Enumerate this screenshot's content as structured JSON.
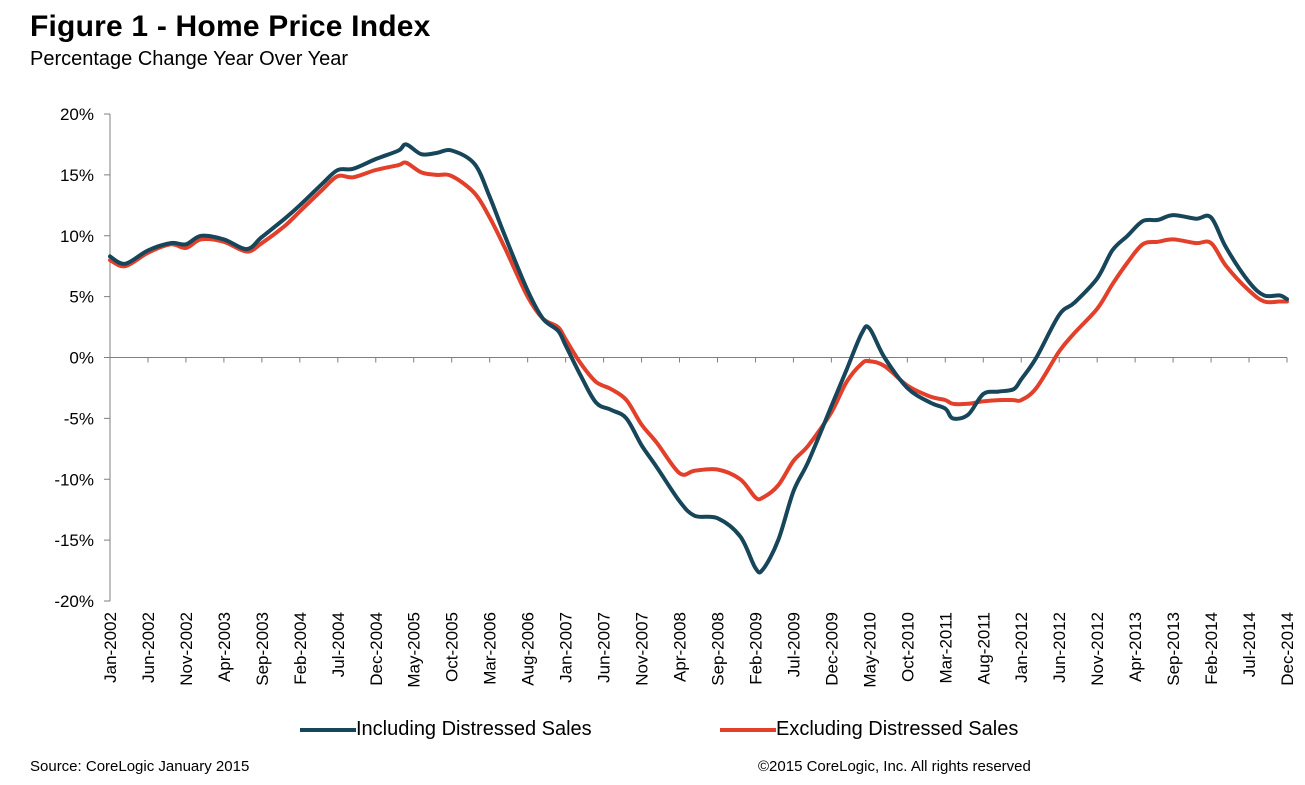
{
  "title": "Figure 1 - Home Price Index",
  "subtitle": "Percentage Change Year Over Year",
  "footer": {
    "source": "Source: CoreLogic  January 2015",
    "copyright": "©2015 CoreLogic, Inc. All rights reserved"
  },
  "chart_data": {
    "type": "line",
    "title": "Figure 1 - Home Price Index",
    "subtitle": "Percentage Change Year Over Year",
    "xlabel": "",
    "ylabel": "",
    "ylim": [
      -20,
      20
    ],
    "yticks": [
      20,
      15,
      10,
      5,
      0,
      -5,
      -10,
      -15,
      -20
    ],
    "ytick_labels": [
      "20%",
      "15%",
      "10%",
      "5%",
      "0%",
      "-5%",
      "-10%",
      "-15%",
      "-20%"
    ],
    "x_start": "Jan-2002",
    "x_end": "Dec-2014",
    "xtick_labels": [
      "Jan-2002",
      "Jun-2002",
      "Nov-2002",
      "Apr-2003",
      "Sep-2003",
      "Feb-2004",
      "Jul-2004",
      "Dec-2004",
      "May-2005",
      "Oct-2005",
      "Mar-2006",
      "Aug-2006",
      "Jan-2007",
      "Jun-2007",
      "Nov-2007",
      "Apr-2008",
      "Sep-2008",
      "Feb-2009",
      "Jul-2009",
      "Dec-2009",
      "May-2010",
      "Oct-2010",
      "Mar-2011",
      "Aug-2011",
      "Jan-2012",
      "Jun-2012",
      "Nov-2012",
      "Apr-2013",
      "Sep-2013",
      "Feb-2014",
      "Jul-2014",
      "Dec-2014"
    ],
    "grid": false,
    "legend_position": "bottom",
    "series": [
      {
        "name": "Including Distressed Sales",
        "color": "#17465a",
        "points": [
          [
            "Jan-2002",
            8.3
          ],
          [
            "Mar-2002",
            7.7
          ],
          [
            "Jun-2002",
            8.8
          ],
          [
            "Sep-2002",
            9.4
          ],
          [
            "Nov-2002",
            9.3
          ],
          [
            "Jan-2003",
            10.0
          ],
          [
            "Apr-2003",
            9.7
          ],
          [
            "Jul-2003",
            8.9
          ],
          [
            "Sep-2003",
            9.9
          ],
          [
            "Dec-2003",
            11.4
          ],
          [
            "Feb-2004",
            12.5
          ],
          [
            "May-2004",
            14.3
          ],
          [
            "Jul-2004",
            15.4
          ],
          [
            "Sep-2004",
            15.5
          ],
          [
            "Dec-2004",
            16.3
          ],
          [
            "Mar-2005",
            17.0
          ],
          [
            "Apr-2005",
            17.5
          ],
          [
            "Jun-2005",
            16.7
          ],
          [
            "Aug-2005",
            16.8
          ],
          [
            "Oct-2005",
            17.0
          ],
          [
            "Jan-2006",
            15.9
          ],
          [
            "Mar-2006",
            13.2
          ],
          [
            "May-2006",
            10.0
          ],
          [
            "Aug-2006",
            5.5
          ],
          [
            "Oct-2006",
            3.2
          ],
          [
            "Dec-2006",
            2.2
          ],
          [
            "Jan-2007",
            1.0
          ],
          [
            "Mar-2007",
            -1.5
          ],
          [
            "May-2007",
            -3.7
          ],
          [
            "Jul-2007",
            -4.3
          ],
          [
            "Sep-2007",
            -5.0
          ],
          [
            "Nov-2007",
            -7.2
          ],
          [
            "Jan-2008",
            -9.0
          ],
          [
            "Apr-2008",
            -11.8
          ],
          [
            "Jun-2008",
            -13.0
          ],
          [
            "Sep-2008",
            -13.2
          ],
          [
            "Dec-2008",
            -14.7
          ],
          [
            "Feb-2009",
            -17.3
          ],
          [
            "Mar-2009",
            -17.4
          ],
          [
            "May-2009",
            -15.0
          ],
          [
            "Jul-2009",
            -11.0
          ],
          [
            "Sep-2009",
            -8.5
          ],
          [
            "Dec-2009",
            -4.0
          ],
          [
            "Feb-2010",
            -1.0
          ],
          [
            "Apr-2010",
            2.0
          ],
          [
            "May-2010",
            2.4
          ],
          [
            "Jul-2010",
            0.0
          ],
          [
            "Oct-2010",
            -2.5
          ],
          [
            "Jan-2011",
            -3.7
          ],
          [
            "Mar-2011",
            -4.2
          ],
          [
            "Apr-2011",
            -5.0
          ],
          [
            "Jun-2011",
            -4.7
          ],
          [
            "Aug-2011",
            -3.0
          ],
          [
            "Oct-2011",
            -2.8
          ],
          [
            "Dec-2011",
            -2.6
          ],
          [
            "Jan-2012",
            -1.8
          ],
          [
            "Mar-2012",
            0.0
          ],
          [
            "Jun-2012",
            3.5
          ],
          [
            "Aug-2012",
            4.5
          ],
          [
            "Nov-2012",
            6.5
          ],
          [
            "Jan-2013",
            8.8
          ],
          [
            "Mar-2013",
            10.0
          ],
          [
            "May-2013",
            11.2
          ],
          [
            "Jul-2013",
            11.3
          ],
          [
            "Sep-2013",
            11.7
          ],
          [
            "Dec-2013",
            11.4
          ],
          [
            "Feb-2014",
            11.5
          ],
          [
            "Apr-2014",
            9.0
          ],
          [
            "Jul-2014",
            6.2
          ],
          [
            "Sep-2014",
            5.1
          ],
          [
            "Nov-2014",
            5.1
          ],
          [
            "Dec-2014",
            4.8
          ]
        ]
      },
      {
        "name": "Excluding Distressed Sales",
        "color": "#e2402b",
        "points": [
          [
            "Jan-2002",
            8.0
          ],
          [
            "Mar-2002",
            7.5
          ],
          [
            "Jun-2002",
            8.6
          ],
          [
            "Sep-2002",
            9.3
          ],
          [
            "Nov-2002",
            9.0
          ],
          [
            "Jan-2003",
            9.7
          ],
          [
            "Apr-2003",
            9.5
          ],
          [
            "Jul-2003",
            8.7
          ],
          [
            "Sep-2003",
            9.4
          ],
          [
            "Dec-2003",
            10.8
          ],
          [
            "Feb-2004",
            12.0
          ],
          [
            "May-2004",
            13.8
          ],
          [
            "Jul-2004",
            14.9
          ],
          [
            "Sep-2004",
            14.8
          ],
          [
            "Dec-2004",
            15.4
          ],
          [
            "Mar-2005",
            15.8
          ],
          [
            "Apr-2005",
            16.0
          ],
          [
            "Jun-2005",
            15.2
          ],
          [
            "Aug-2005",
            15.0
          ],
          [
            "Oct-2005",
            14.9
          ],
          [
            "Jan-2006",
            13.5
          ],
          [
            "Mar-2006",
            11.5
          ],
          [
            "May-2006",
            9.0
          ],
          [
            "Aug-2006",
            5.0
          ],
          [
            "Oct-2006",
            3.2
          ],
          [
            "Dec-2006",
            2.5
          ],
          [
            "Jan-2007",
            1.5
          ],
          [
            "Mar-2007",
            -0.5
          ],
          [
            "May-2007",
            -2.0
          ],
          [
            "Jul-2007",
            -2.6
          ],
          [
            "Sep-2007",
            -3.5
          ],
          [
            "Nov-2007",
            -5.5
          ],
          [
            "Jan-2008",
            -7.0
          ],
          [
            "Apr-2008",
            -9.5
          ],
          [
            "Jun-2008",
            -9.3
          ],
          [
            "Sep-2008",
            -9.2
          ],
          [
            "Dec-2008",
            -10.0
          ],
          [
            "Feb-2009",
            -11.5
          ],
          [
            "Mar-2009",
            -11.5
          ],
          [
            "May-2009",
            -10.5
          ],
          [
            "Jul-2009",
            -8.5
          ],
          [
            "Sep-2009",
            -7.2
          ],
          [
            "Dec-2009",
            -4.5
          ],
          [
            "Feb-2010",
            -2.0
          ],
          [
            "Apr-2010",
            -0.5
          ],
          [
            "May-2010",
            -0.3
          ],
          [
            "Jul-2010",
            -0.7
          ],
          [
            "Oct-2010",
            -2.3
          ],
          [
            "Jan-2011",
            -3.2
          ],
          [
            "Mar-2011",
            -3.5
          ],
          [
            "Apr-2011",
            -3.8
          ],
          [
            "Jun-2011",
            -3.8
          ],
          [
            "Aug-2011",
            -3.6
          ],
          [
            "Oct-2011",
            -3.5
          ],
          [
            "Dec-2011",
            -3.5
          ],
          [
            "Jan-2012",
            -3.5
          ],
          [
            "Mar-2012",
            -2.5
          ],
          [
            "Jun-2012",
            0.5
          ],
          [
            "Aug-2012",
            2.0
          ],
          [
            "Nov-2012",
            4.0
          ],
          [
            "Jan-2013",
            6.0
          ],
          [
            "Mar-2013",
            7.8
          ],
          [
            "May-2013",
            9.3
          ],
          [
            "Jul-2013",
            9.5
          ],
          [
            "Sep-2013",
            9.7
          ],
          [
            "Dec-2013",
            9.4
          ],
          [
            "Feb-2014",
            9.4
          ],
          [
            "Apr-2014",
            7.5
          ],
          [
            "Jul-2014",
            5.5
          ],
          [
            "Sep-2014",
            4.6
          ],
          [
            "Nov-2014",
            4.6
          ],
          [
            "Dec-2014",
            4.6
          ]
        ]
      }
    ]
  }
}
